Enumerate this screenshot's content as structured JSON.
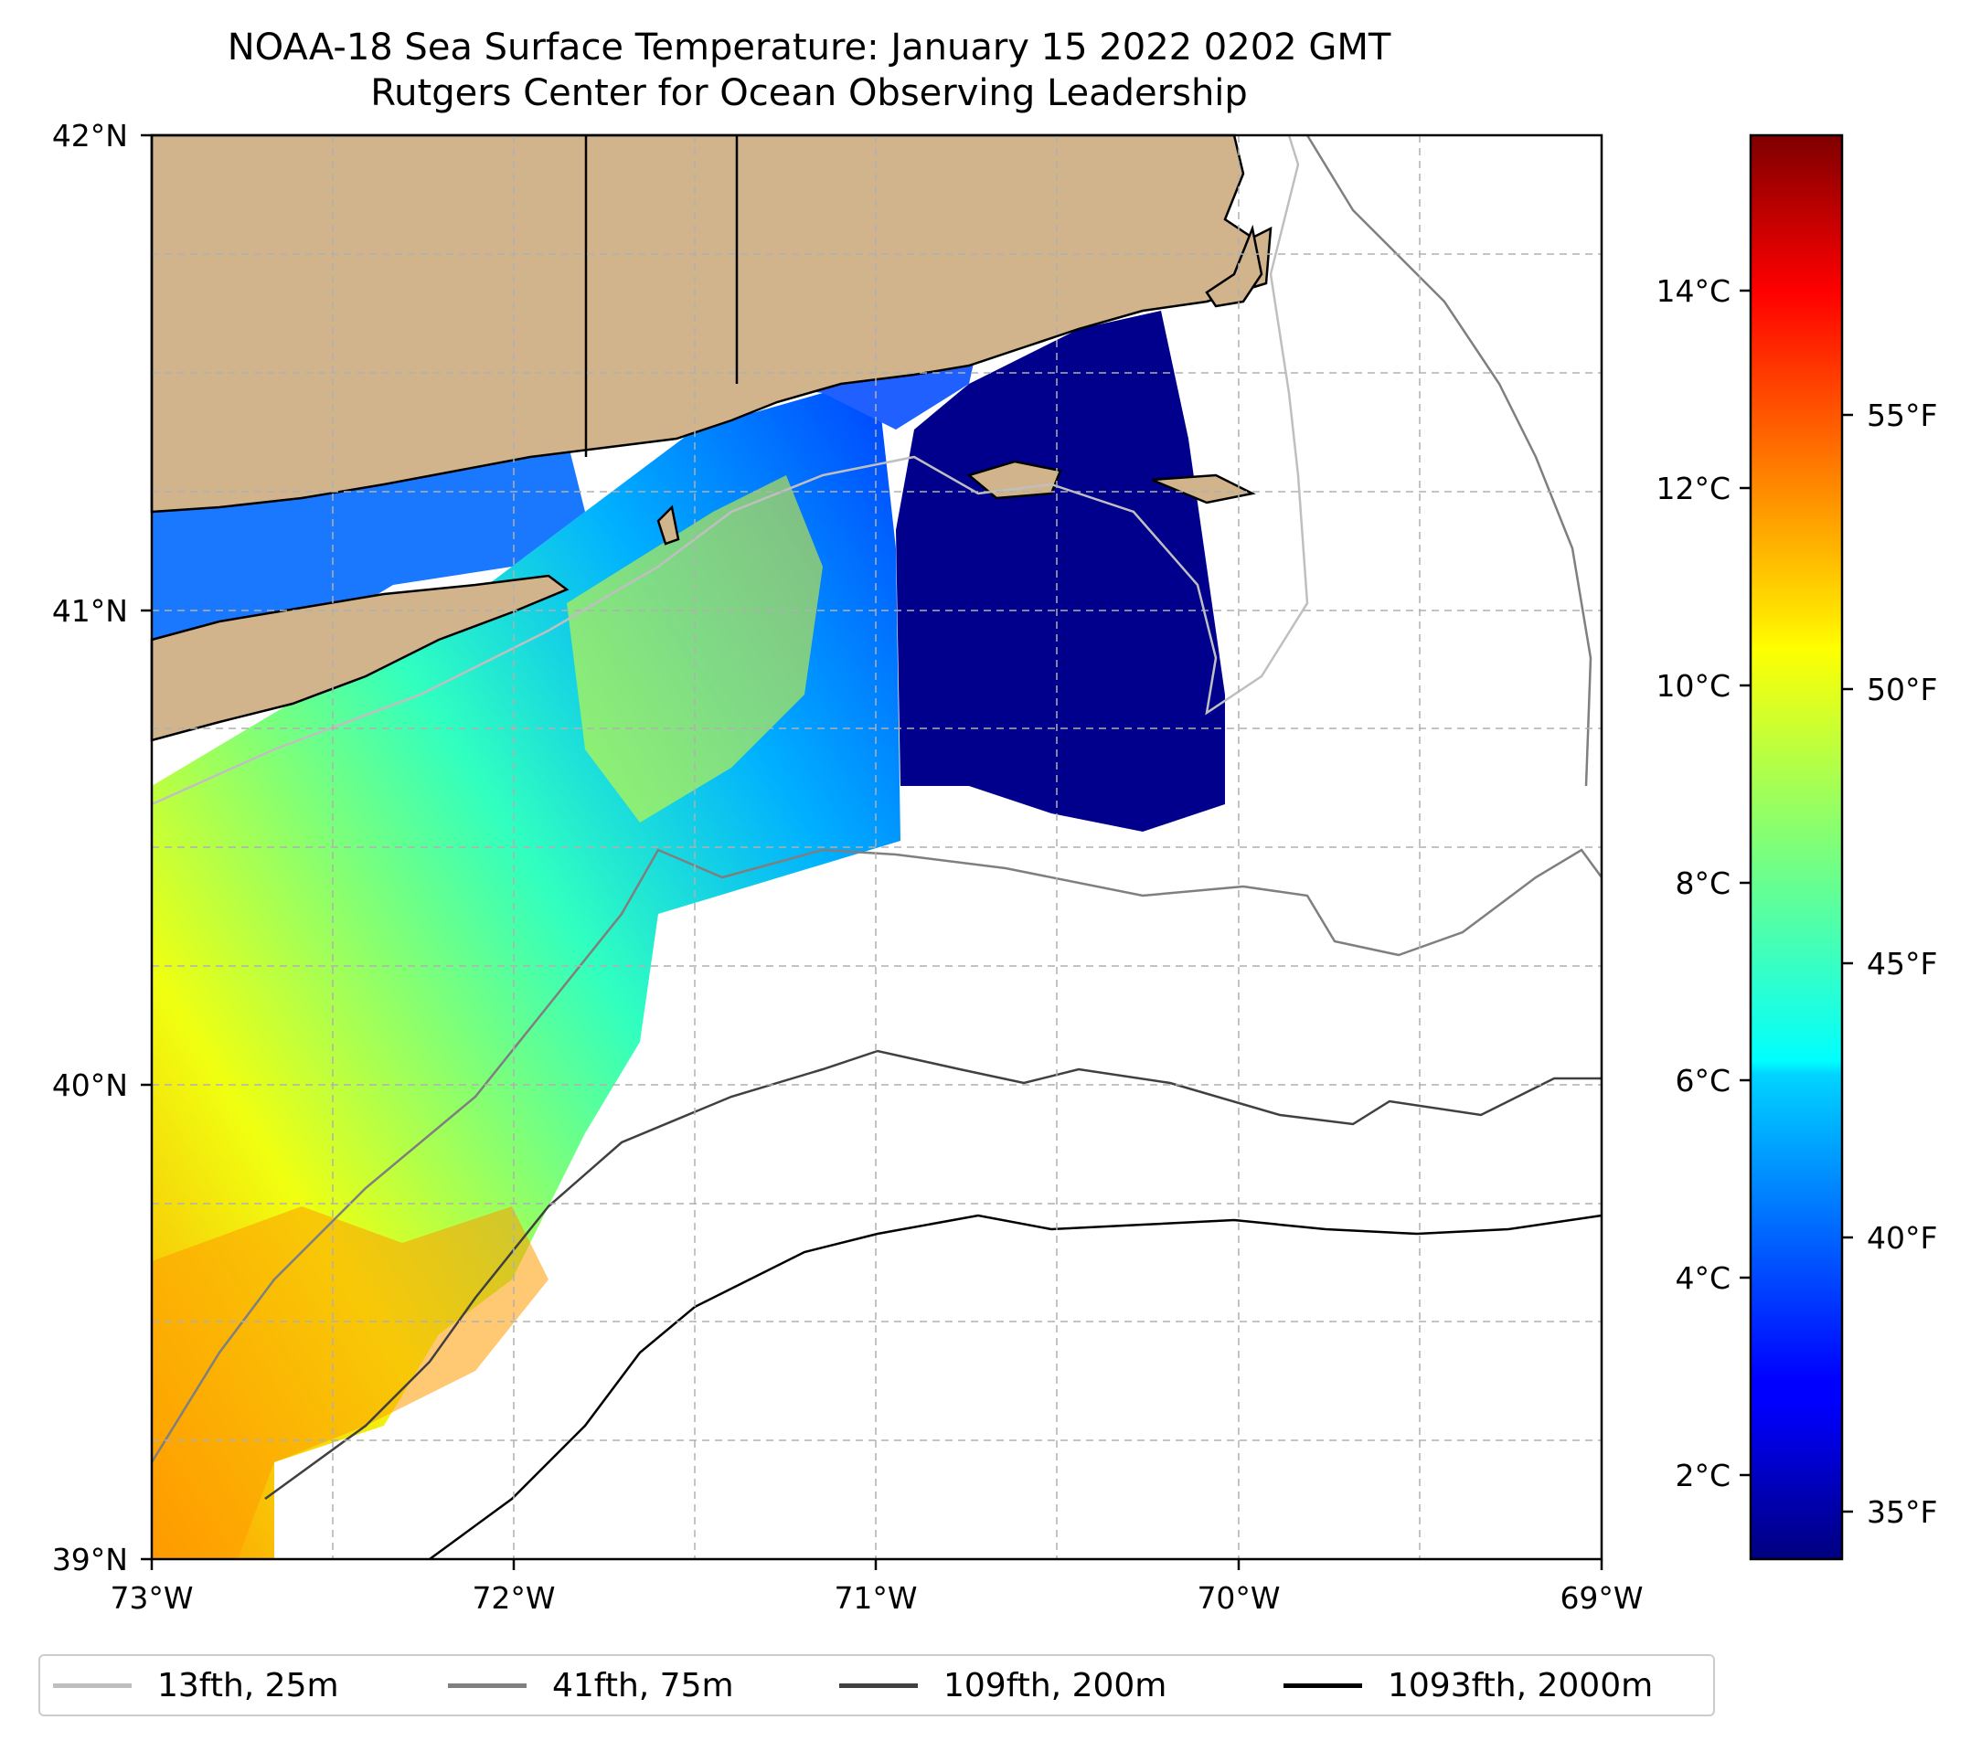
{
  "title": {
    "line1": "NOAA-18 Sea Surface Temperature: January 15 2022 0202 GMT",
    "line2": "Rutgers Center for Ocean Observing Leadership"
  },
  "map": {
    "lat_range": [
      39,
      42
    ],
    "lon_range": [
      -73,
      -69
    ],
    "lat_ticks": [
      "39°N",
      "40°N",
      "41°N",
      "42°N"
    ],
    "lon_ticks": [
      "73°W",
      "72°W",
      "71°W",
      "70°W",
      "69°W"
    ],
    "gridlines": true
  },
  "colorbar": {
    "colormap": "jet",
    "celsius_ticks": [
      "2°C",
      "4°C",
      "6°C",
      "8°C",
      "10°C",
      "12°C",
      "14°C"
    ],
    "fahrenheit_ticks": [
      "35°F",
      "40°F",
      "45°F",
      "50°F",
      "55°F"
    ],
    "range_f": [
      34,
      60
    ]
  },
  "legend": [
    {
      "label": "13fth, 25m",
      "color": "#bfbfbf"
    },
    {
      "label": "41fth, 75m",
      "color": "#7f7f7f"
    },
    {
      "label": "109fth, 200m",
      "color": "#404040"
    },
    {
      "label": "1093fth, 2000m",
      "color": "#000000"
    }
  ],
  "colors": {
    "land": "#d2b48c",
    "grid": "#b0b0b0"
  }
}
